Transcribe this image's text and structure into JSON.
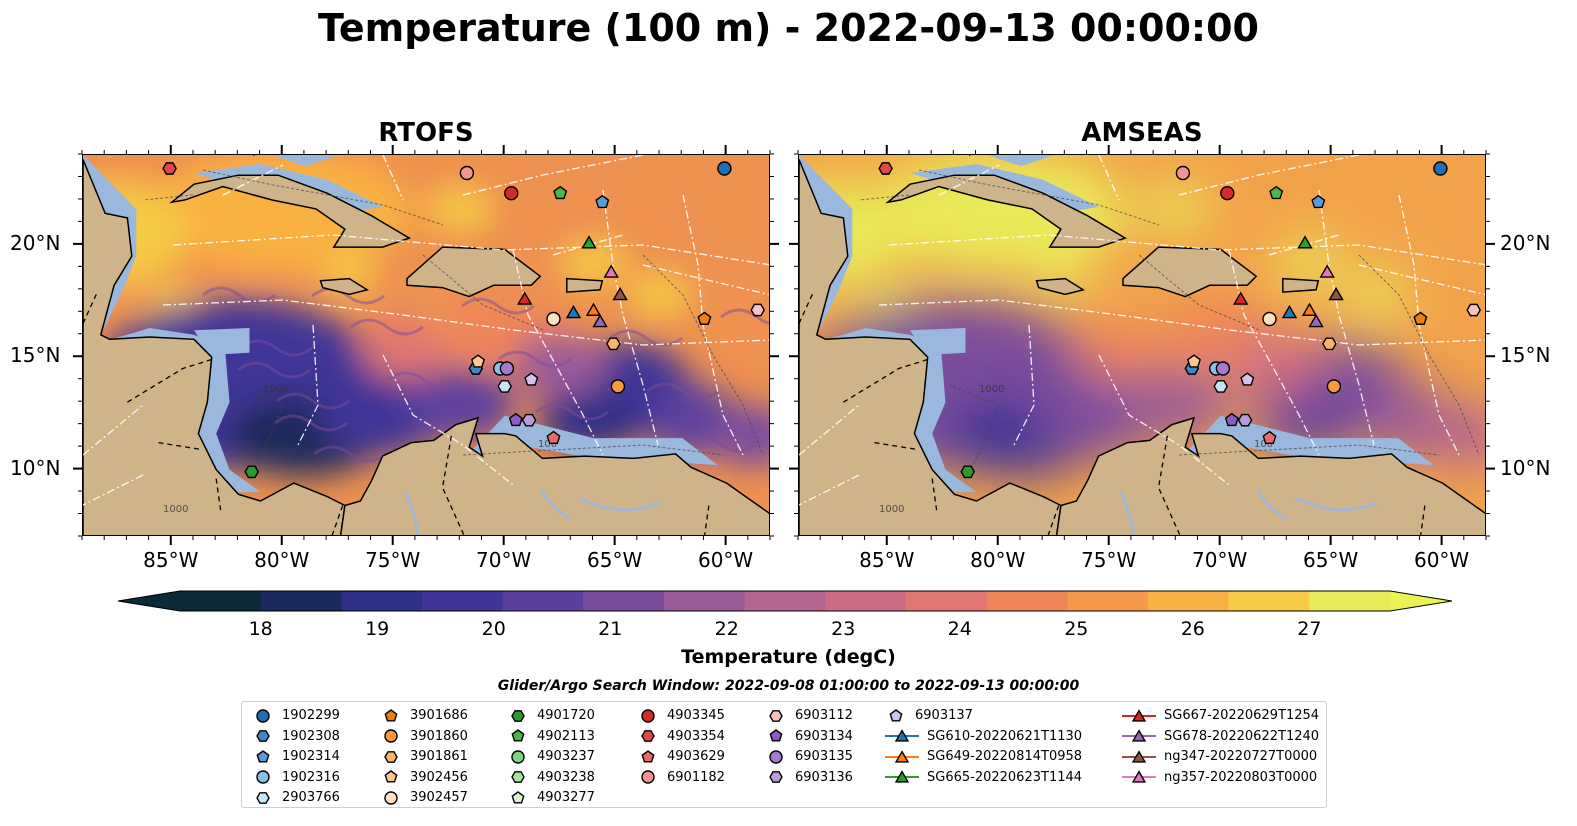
{
  "title": "Temperature (100 m) - 2022-09-13 00:00:00",
  "panels": [
    {
      "title": "RTOFS"
    },
    {
      "title": "AMSEAS"
    }
  ],
  "map": {
    "lon_range": [
      -89,
      -58
    ],
    "lat_range": [
      7,
      24
    ],
    "lon_ticks": [
      "85°W",
      "80°W",
      "75°W",
      "70°W",
      "65°W",
      "60°W"
    ],
    "lat_ticks": [
      "20°N",
      "15°N",
      "10°N"
    ],
    "contour_labels": [
      "1000",
      "1000",
      "100"
    ]
  },
  "colorbar": {
    "label": "Temperature (degC)",
    "ticks": [
      "18",
      "19",
      "20",
      "21",
      "22",
      "23",
      "24",
      "25",
      "26",
      "27"
    ],
    "range": [
      18,
      27
    ],
    "extend": "both",
    "colors": [
      "#0a2a3a",
      "#1a2a5c",
      "#2e2f86",
      "#3f3598",
      "#5b3f9e",
      "#7a4d9c",
      "#985a98",
      "#b46590",
      "#cc6d85",
      "#e0766f",
      "#ef8458",
      "#f6994a",
      "#f9b142",
      "#f6cb45",
      "#e9ea58"
    ]
  },
  "legend": {
    "title": "Glider/Argo Search Window: 2022-09-08 01:00:00 to 2022-09-13 00:00:00",
    "columns": [
      [
        {
          "label": "1902299",
          "marker": "circle",
          "color": "#1f6fb4"
        },
        {
          "label": "1902308",
          "marker": "hexagon",
          "color": "#3f86c4"
        },
        {
          "label": "1902314",
          "marker": "pentagon",
          "color": "#5a9bd4"
        },
        {
          "label": "1902316",
          "marker": "circle",
          "color": "#88c0e8"
        },
        {
          "label": "2903766",
          "marker": "hexagon",
          "color": "#c7e4f7"
        }
      ],
      [
        {
          "label": "3901686",
          "marker": "pentagon",
          "color": "#f07f0f"
        },
        {
          "label": "3901860",
          "marker": "circle",
          "color": "#f7993c"
        },
        {
          "label": "3901861",
          "marker": "hexagon",
          "color": "#f9b46b"
        },
        {
          "label": "3902456",
          "marker": "pentagon",
          "color": "#fbc98f"
        },
        {
          "label": "3902457",
          "marker": "circle",
          "color": "#fde2c0"
        }
      ],
      [
        {
          "label": "4901720",
          "marker": "hexagon",
          "color": "#2c9a2c"
        },
        {
          "label": "4902113",
          "marker": "pentagon",
          "color": "#4cb84c"
        },
        {
          "label": "4903237",
          "marker": "circle",
          "color": "#7fd37f"
        },
        {
          "label": "4903238",
          "marker": "hexagon",
          "color": "#a8e3a0"
        },
        {
          "label": "4903277",
          "marker": "pentagon",
          "color": "#d8f5d0"
        }
      ],
      [
        {
          "label": "4903345",
          "marker": "circle",
          "color": "#d42a2a"
        },
        {
          "label": "4903354",
          "marker": "hexagon",
          "color": "#e04848"
        },
        {
          "label": "4903629",
          "marker": "pentagon",
          "color": "#ea6a6a"
        },
        {
          "label": "6901182",
          "marker": "circle",
          "color": "#f39393"
        }
      ],
      [
        {
          "label": "6903112",
          "marker": "hexagon",
          "color": "#fac1c1"
        },
        {
          "label": "6903134",
          "marker": "pentagon",
          "color": "#8a5cc4"
        },
        {
          "label": "6903135",
          "marker": "circle",
          "color": "#a27bd0"
        },
        {
          "label": "6903136",
          "marker": "hexagon",
          "color": "#b99bdb"
        }
      ],
      [
        {
          "label": "6903137",
          "marker": "pentagon",
          "color": "#d5c2ed"
        },
        {
          "label": "SG610-20220621T1130",
          "marker": "triangle-line",
          "color": "#1f77b4"
        },
        {
          "label": "SG649-20220814T0958",
          "marker": "triangle-line",
          "color": "#ff7f0e"
        },
        {
          "label": "SG665-20220623T1144",
          "marker": "triangle-line",
          "color": "#2ca02c"
        }
      ],
      [
        {
          "label": "SG667-20220629T1254",
          "marker": "triangle-line",
          "color": "#d62728"
        },
        {
          "label": "SG678-20220622T1240",
          "marker": "triangle-line",
          "color": "#9467bd"
        },
        {
          "label": "ng347-20220727T0000",
          "marker": "triangle-line",
          "color": "#8c564b"
        },
        {
          "label": "ng357-20220803T0000",
          "marker": "triangle-line",
          "color": "#e377c2"
        }
      ]
    ]
  },
  "markers": [
    {
      "id": "1902299",
      "lon": -60.1,
      "lat": 23.4
    },
    {
      "id": "1902308",
      "lon": -71.3,
      "lat": 14.5
    },
    {
      "id": "1902314",
      "lon": -65.6,
      "lat": 21.9
    },
    {
      "id": "1902316",
      "lon": -70.2,
      "lat": 14.5
    },
    {
      "id": "2903766",
      "lon": -70.0,
      "lat": 13.7
    },
    {
      "id": "3901686",
      "lon": -61.0,
      "lat": 16.7
    },
    {
      "id": "3901860",
      "lon": -64.9,
      "lat": 13.7
    },
    {
      "id": "3901861",
      "lon": -65.1,
      "lat": 15.6
    },
    {
      "id": "3902456",
      "lon": -71.2,
      "lat": 14.8
    },
    {
      "id": "3902457",
      "lon": -67.8,
      "lat": 16.7
    },
    {
      "id": "4901720",
      "lon": -81.4,
      "lat": 9.9
    },
    {
      "id": "4902113",
      "lon": -67.5,
      "lat": 22.3
    },
    {
      "id": "4903345",
      "lon": -69.7,
      "lat": 22.3
    },
    {
      "id": "4903354",
      "lon": -85.1,
      "lat": 23.4
    },
    {
      "id": "4903629",
      "lon": -67.8,
      "lat": 11.4
    },
    {
      "id": "6901182",
      "lon": -71.7,
      "lat": 23.2
    },
    {
      "id": "6903112",
      "lon": -58.6,
      "lat": 17.1
    },
    {
      "id": "6903134",
      "lon": -69.5,
      "lat": 12.2
    },
    {
      "id": "6903135",
      "lon": -69.9,
      "lat": 14.5
    },
    {
      "id": "6903136",
      "lon": -68.9,
      "lat": 12.2
    },
    {
      "id": "6903137",
      "lon": -68.8,
      "lat": 14.0
    },
    {
      "id": "SG610-20220621T1130",
      "lon": -66.9,
      "lat": 17.0
    },
    {
      "id": "SG649-20220814T0958",
      "lon": -66.0,
      "lat": 17.1
    },
    {
      "id": "SG665-20220623T1144",
      "lon": -66.2,
      "lat": 20.1
    },
    {
      "id": "SG667-20220629T1254",
      "lon": -69.1,
      "lat": 17.6
    },
    {
      "id": "SG678-20220622T1240",
      "lon": -65.7,
      "lat": 16.6
    },
    {
      "id": "ng347-20220727T0000",
      "lon": -64.8,
      "lat": 17.8
    },
    {
      "id": "ng357-20220803T0000",
      "lon": -65.2,
      "lat": 18.8
    }
  ]
}
